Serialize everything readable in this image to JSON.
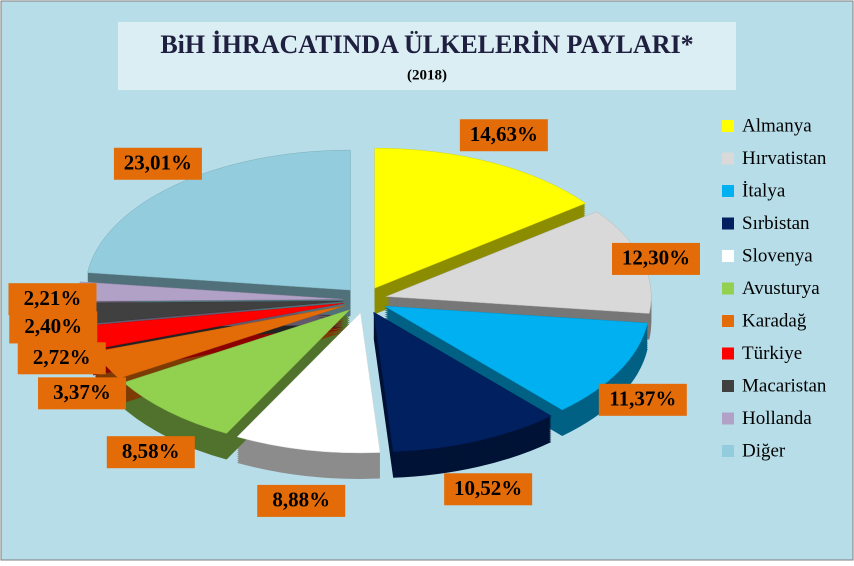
{
  "chart_data": {
    "type": "pie",
    "title": "BiH İHRACATINDA ÜLKELERİN PAYLARI*",
    "subtitle": "(2018)",
    "categories": [
      "Almanya",
      "Hırvatistan",
      "İtalya",
      "Sırbistan",
      "Slovenya",
      "Avusturya",
      "Karadağ",
      "Türkiye",
      "Macaristan",
      "Hollanda",
      "Diğer"
    ],
    "values": [
      14.63,
      12.3,
      11.37,
      10.52,
      8.88,
      8.58,
      3.37,
      2.72,
      2.4,
      2.21,
      23.01
    ],
    "value_labels": [
      "14,63%",
      "12,30%",
      "11,37%",
      "10,52%",
      "8,88%",
      "8,58%",
      "3,37%",
      "2,72%",
      "2,40%",
      "2,21%",
      "23,01%"
    ],
    "colors": [
      "#ffff00",
      "#d9d9d9",
      "#00b0f0",
      "#002060",
      "#ffffff",
      "#92d050",
      "#e36c09",
      "#ff0000",
      "#404040",
      "#b2a1c7",
      "#93cddd"
    ],
    "legend": "right"
  }
}
